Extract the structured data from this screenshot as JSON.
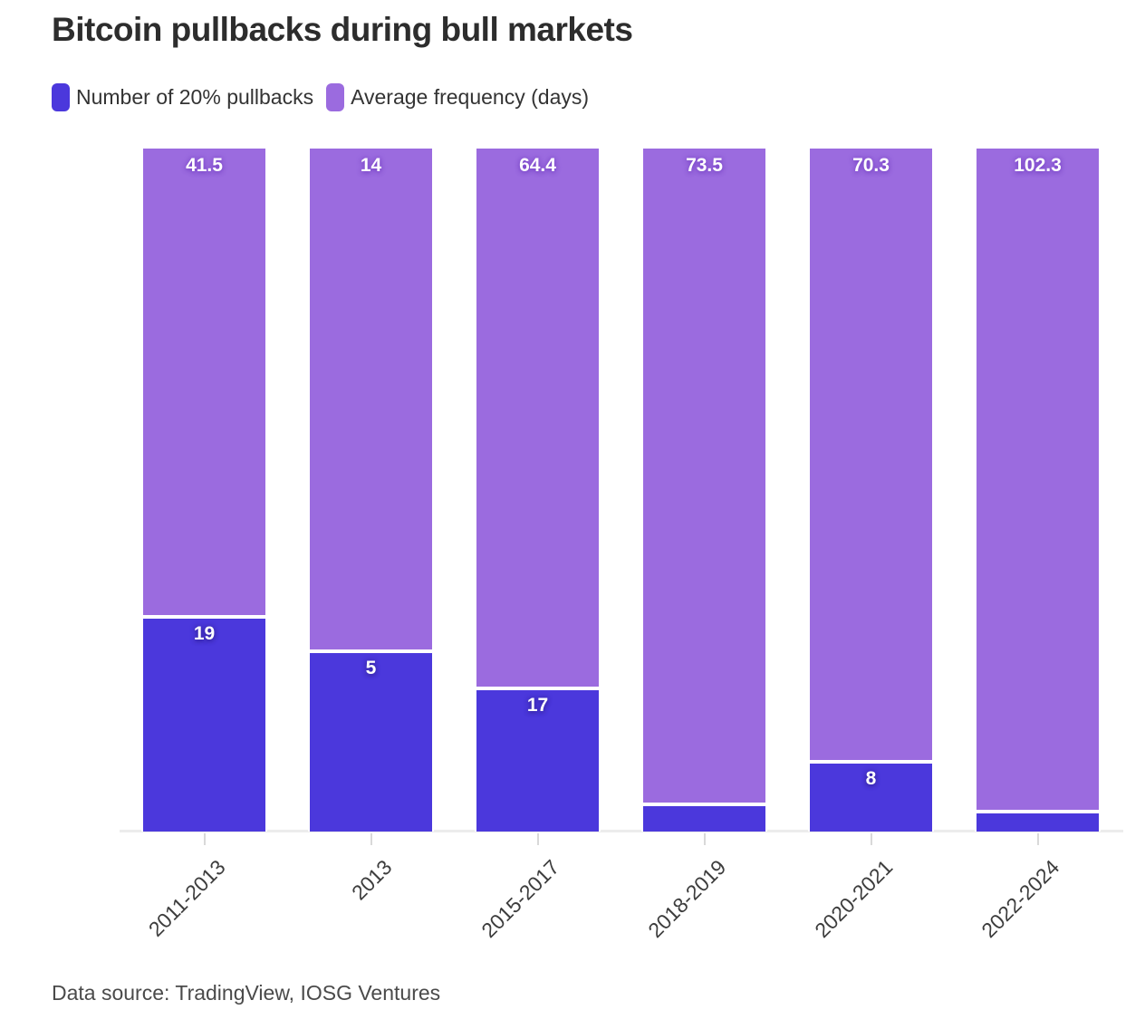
{
  "title": "Bitcoin pullbacks during bull markets",
  "legend": [
    {
      "label": "Number of 20% pullbacks",
      "color": "#4b38dc"
    },
    {
      "label": "Average frequency (days)",
      "color": "#9b6bdf"
    }
  ],
  "source": "Data source: TradingView, IOSG Ventures",
  "colors": {
    "pullbacks": "#4b38dc",
    "frequency": "#9b6bdf",
    "axis_line": "#ececec",
    "tick": "#d9d9d9",
    "title_text": "#2d2d2d",
    "axis_text": "#3d3d3d",
    "background": "#ffffff"
  },
  "chart_data": {
    "type": "bar",
    "stacked": "percent",
    "title": "Bitcoin pullbacks during bull markets",
    "categories": [
      "2011-2013",
      "2013",
      "2015-2017",
      "2018-2019",
      "2020-2021",
      "2022-2024"
    ],
    "series": [
      {
        "name": "Number of 20% pullbacks",
        "color": "#4b38dc",
        "values": [
          19,
          5,
          17,
          3,
          8,
          3
        ],
        "labels": [
          "19",
          "5",
          "17",
          "",
          "8",
          ""
        ]
      },
      {
        "name": "Average frequency (days)",
        "color": "#9b6bdf",
        "values": [
          41.5,
          14,
          64.4,
          73.5,
          70.3,
          102.3
        ],
        "labels": [
          "41.5",
          "14",
          "64.4",
          "73.5",
          "70.3",
          "102.3"
        ]
      }
    ],
    "xlabel": "",
    "ylabel": "",
    "legend_position": "top",
    "grid": false,
    "x_tick_rotation": -45
  }
}
